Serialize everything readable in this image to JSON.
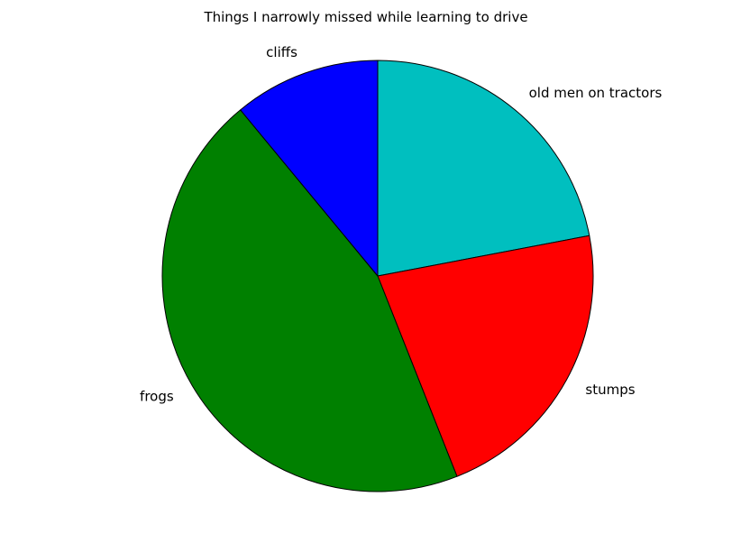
{
  "chart_data": {
    "type": "pie",
    "title": "Things I narrowly missed while learning to drive",
    "labels": [
      "old men on tractors",
      "stumps",
      "frogs",
      "cliffs"
    ],
    "values": [
      22,
      22,
      45,
      11
    ],
    "colors": [
      "#00bfbf",
      "#ff0000",
      "#008000",
      "#0000ff"
    ],
    "start_angle_deg": 90,
    "direction": "clockwise"
  }
}
